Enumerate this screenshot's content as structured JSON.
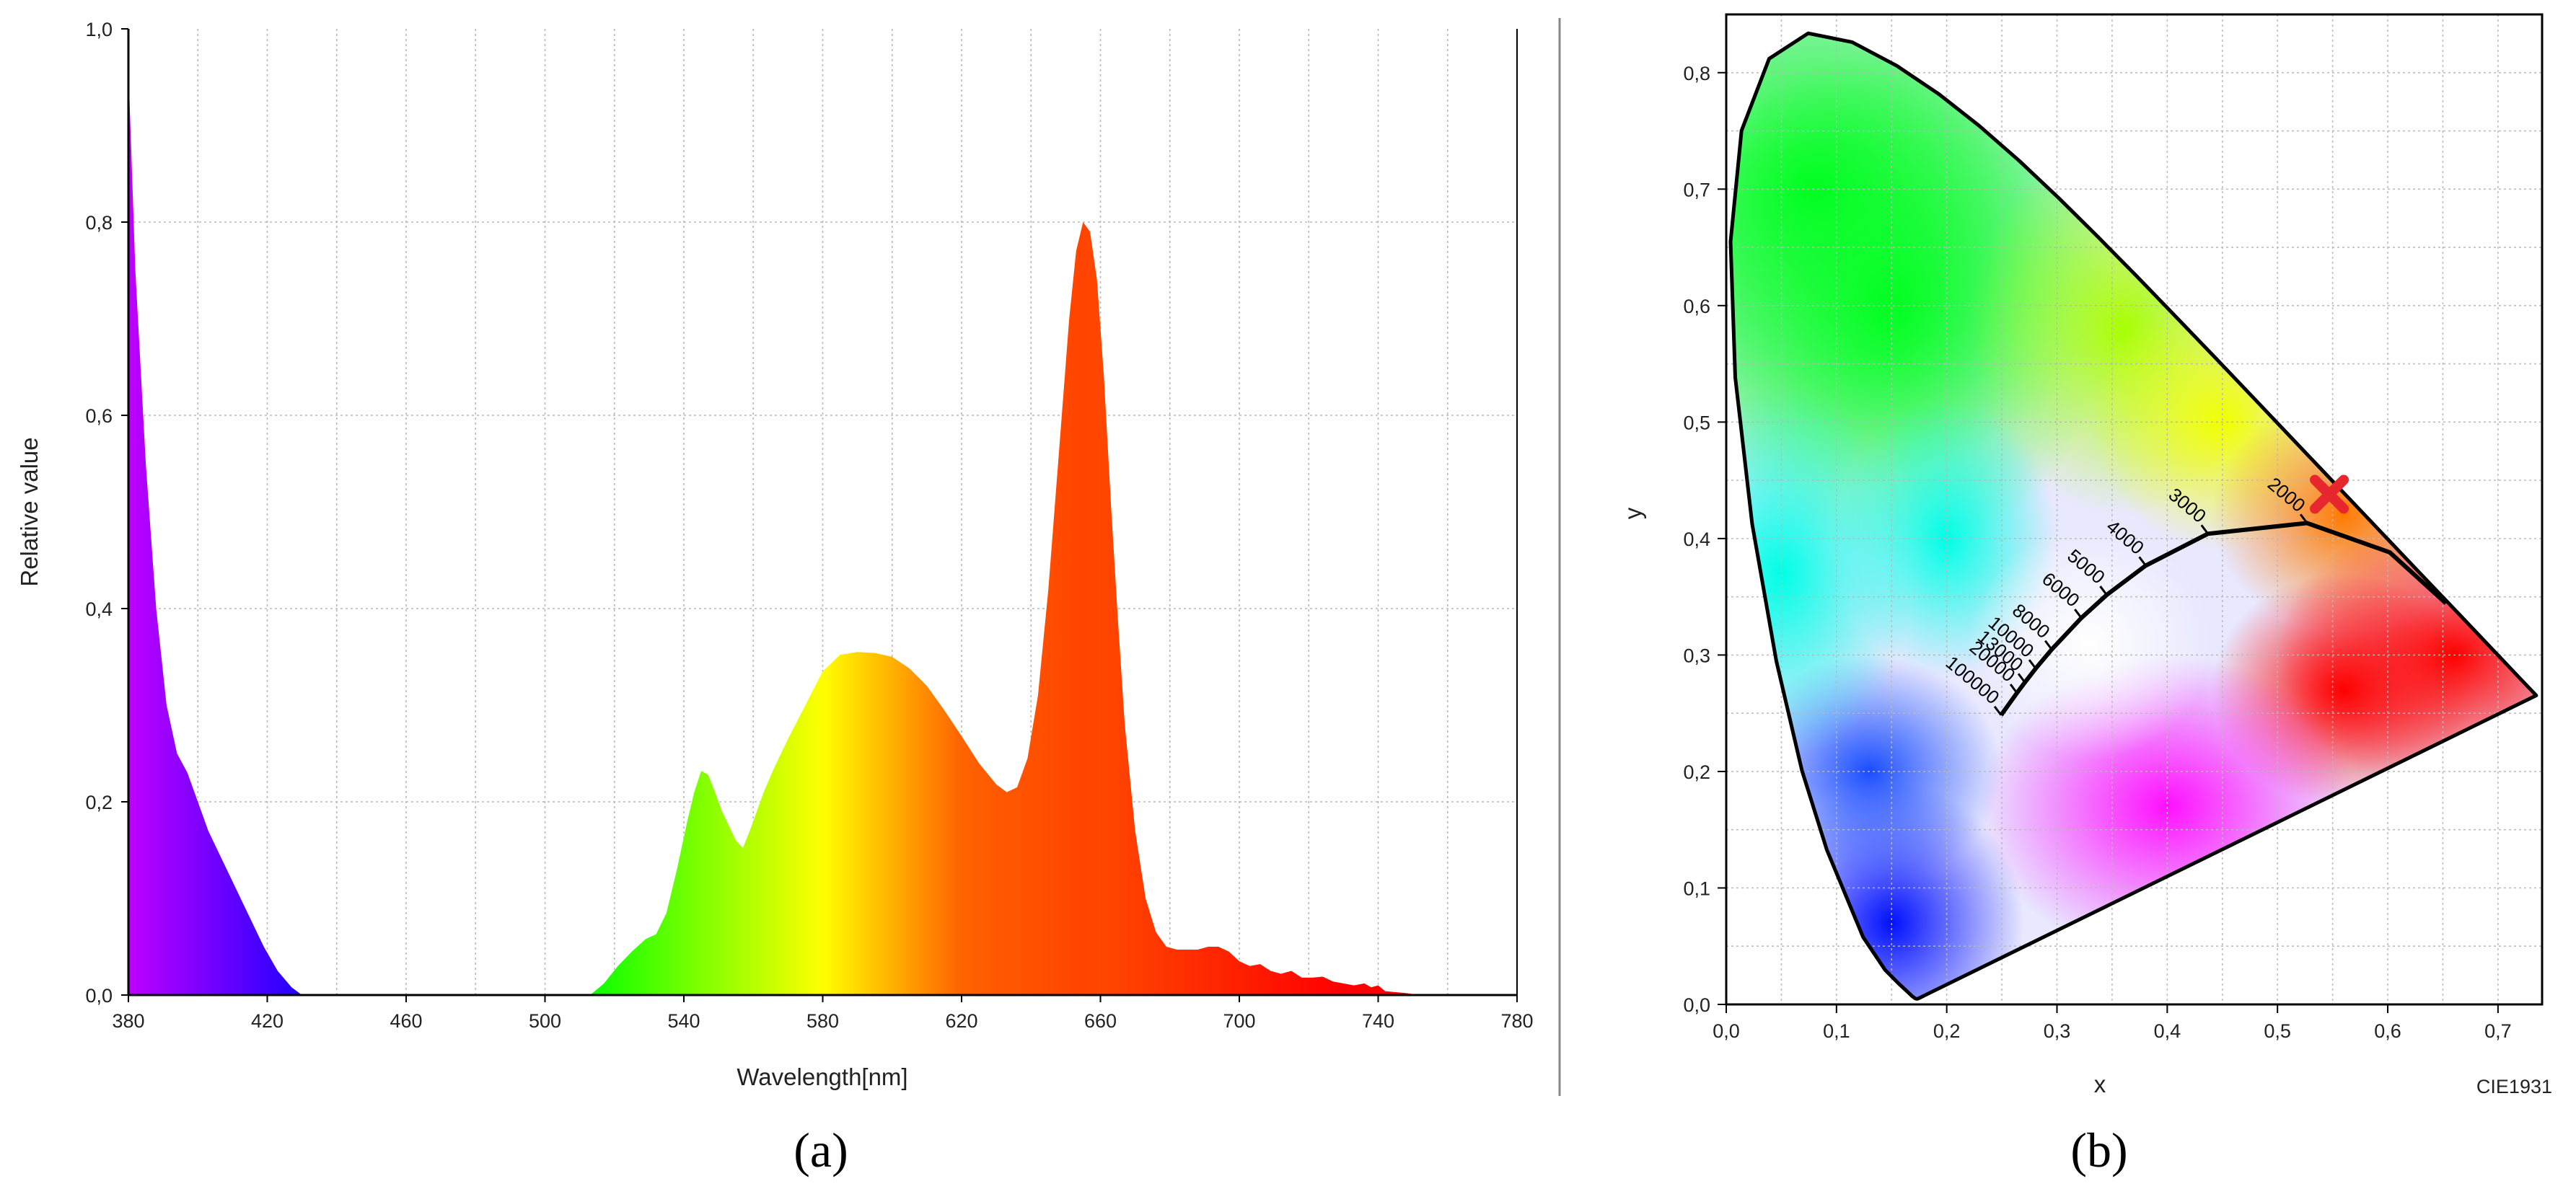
{
  "chart_data": [
    {
      "type": "area",
      "caption": "(a)",
      "xlabel": "Wavelength[nm]",
      "ylabel": "Relative value",
      "xlim": [
        380,
        780
      ],
      "ylim": [
        0,
        1.0
      ],
      "grid": true,
      "x_ticks": [
        380,
        420,
        460,
        500,
        540,
        580,
        620,
        660,
        700,
        740,
        780
      ],
      "x_tick_labels": [
        "380",
        "420",
        "460",
        "500",
        "540",
        "580",
        "620",
        "660",
        "700",
        "740",
        "780"
      ],
      "y_ticks": [
        0,
        0.2,
        0.4,
        0.6,
        0.8,
        1.0
      ],
      "y_tick_labels": [
        "0,0",
        "0,2",
        "0,4",
        "0,6",
        "0,8",
        "1,0"
      ],
      "fill": "spectral wavelength colors",
      "x": [
        380,
        382,
        385,
        388,
        391,
        394,
        397,
        400,
        403,
        407,
        411,
        415,
        419,
        423,
        427,
        430,
        505,
        513,
        517,
        521,
        525,
        529,
        532,
        535,
        538,
        541,
        543,
        545,
        547,
        549,
        551,
        553,
        555,
        557,
        559,
        561,
        563,
        566,
        570,
        575,
        580,
        585,
        590,
        595,
        600,
        605,
        610,
        615,
        620,
        625,
        630,
        633,
        636,
        639,
        642,
        645,
        648,
        651,
        653,
        655,
        657,
        659,
        661,
        663,
        665,
        667,
        670,
        673,
        676,
        679,
        682,
        685,
        688,
        691,
        694,
        697,
        700,
        703,
        706,
        709,
        712,
        715,
        718,
        721,
        724,
        727,
        730,
        733,
        736,
        738,
        740,
        742,
        745,
        748,
        752
      ],
      "y": [
        0.96,
        0.75,
        0.55,
        0.4,
        0.3,
        0.25,
        0.23,
        0.2,
        0.17,
        0.14,
        0.11,
        0.08,
        0.05,
        0.025,
        0.008,
        0.0,
        0.0,
        0.0,
        0.012,
        0.03,
        0.045,
        0.058,
        0.063,
        0.085,
        0.13,
        0.18,
        0.21,
        0.232,
        0.228,
        0.21,
        0.19,
        0.175,
        0.16,
        0.152,
        0.17,
        0.19,
        0.21,
        0.235,
        0.265,
        0.3,
        0.335,
        0.352,
        0.355,
        0.354,
        0.35,
        0.338,
        0.32,
        0.295,
        0.268,
        0.24,
        0.218,
        0.21,
        0.215,
        0.245,
        0.31,
        0.42,
        0.56,
        0.7,
        0.77,
        0.8,
        0.79,
        0.74,
        0.64,
        0.51,
        0.39,
        0.28,
        0.17,
        0.1,
        0.065,
        0.05,
        0.047,
        0.047,
        0.047,
        0.05,
        0.05,
        0.045,
        0.035,
        0.03,
        0.032,
        0.025,
        0.022,
        0.025,
        0.018,
        0.018,
        0.019,
        0.014,
        0.012,
        0.01,
        0.012,
        0.008,
        0.01,
        0.004,
        0.003,
        0.002,
        0.0
      ]
    },
    {
      "type": "scatter",
      "caption": "(b)",
      "xlabel": "x",
      "ylabel": "y",
      "corner_label": "CIE1931",
      "xlim": [
        0.0,
        0.74
      ],
      "ylim": [
        0.0,
        0.85
      ],
      "grid": true,
      "x_ticks": [
        0.0,
        0.1,
        0.2,
        0.3,
        0.4,
        0.5,
        0.6,
        0.7
      ],
      "x_tick_labels": [
        "0,0",
        "0,1",
        "0,2",
        "0,3",
        "0,4",
        "0,5",
        "0,6",
        "0,7"
      ],
      "y_ticks": [
        0.0,
        0.1,
        0.2,
        0.3,
        0.4,
        0.5,
        0.6,
        0.7,
        0.8
      ],
      "y_tick_labels": [
        "0,0",
        "0,1",
        "0,2",
        "0,3",
        "0,4",
        "0,5",
        "0,6",
        "0,7",
        "0,8"
      ],
      "spectral_locus": {
        "x": [
          0.1741,
          0.1738,
          0.1733,
          0.1726,
          0.1714,
          0.1689,
          0.1644,
          0.1566,
          0.144,
          0.1241,
          0.0913,
          0.0687,
          0.0454,
          0.0235,
          0.0082,
          0.0039,
          0.0139,
          0.0389,
          0.0743,
          0.1142,
          0.1547,
          0.1929,
          0.2296,
          0.2658,
          0.3016,
          0.3373,
          0.3731,
          0.4087,
          0.4441,
          0.4788,
          0.5125,
          0.5448,
          0.5752,
          0.6029,
          0.627,
          0.6482,
          0.6658,
          0.6915,
          0.7079,
          0.719,
          0.7347
        ],
        "y": [
          0.005,
          0.0049,
          0.0048,
          0.0048,
          0.0051,
          0.0069,
          0.0109,
          0.0177,
          0.0297,
          0.0578,
          0.1327,
          0.2007,
          0.295,
          0.4127,
          0.5384,
          0.6548,
          0.7502,
          0.812,
          0.8338,
          0.8262,
          0.8059,
          0.7816,
          0.7543,
          0.7243,
          0.6923,
          0.6589,
          0.6245,
          0.5896,
          0.5547,
          0.5202,
          0.4866,
          0.4544,
          0.4242,
          0.3965,
          0.3725,
          0.3514,
          0.334,
          0.3083,
          0.292,
          0.2809,
          0.2653
        ]
      },
      "planckian_locus": {
        "x": [
          0.6528,
          0.6019,
          0.5268,
          0.4369,
          0.3805,
          0.3451,
          0.3221,
          0.2952,
          0.2807,
          0.2709,
          0.2637,
          0.2493
        ],
        "y": [
          0.3444,
          0.3881,
          0.4133,
          0.4041,
          0.3768,
          0.3516,
          0.3318,
          0.3048,
          0.2884,
          0.2765,
          0.2674,
          0.2484
        ]
      },
      "cct_labels": [
        "2000",
        "3000",
        "4000",
        "5000",
        "6000",
        "8000",
        "10000",
        "13000",
        "20000",
        "100000"
      ],
      "cct_points": {
        "x": [
          0.5268,
          0.4369,
          0.3805,
          0.3451,
          0.3221,
          0.2952,
          0.2807,
          0.2709,
          0.2637,
          0.2493
        ],
        "y": [
          0.4133,
          0.4041,
          0.3768,
          0.3516,
          0.3318,
          0.3048,
          0.2884,
          0.2765,
          0.2674,
          0.2484
        ]
      },
      "marker": {
        "x": 0.547,
        "y": 0.438,
        "symbol": "x",
        "color": "#e8262e"
      }
    }
  ],
  "colors": {
    "grid": "#b8b8b8",
    "axis": "#000000",
    "marker": "#e8262e",
    "separator": "#888888"
  }
}
